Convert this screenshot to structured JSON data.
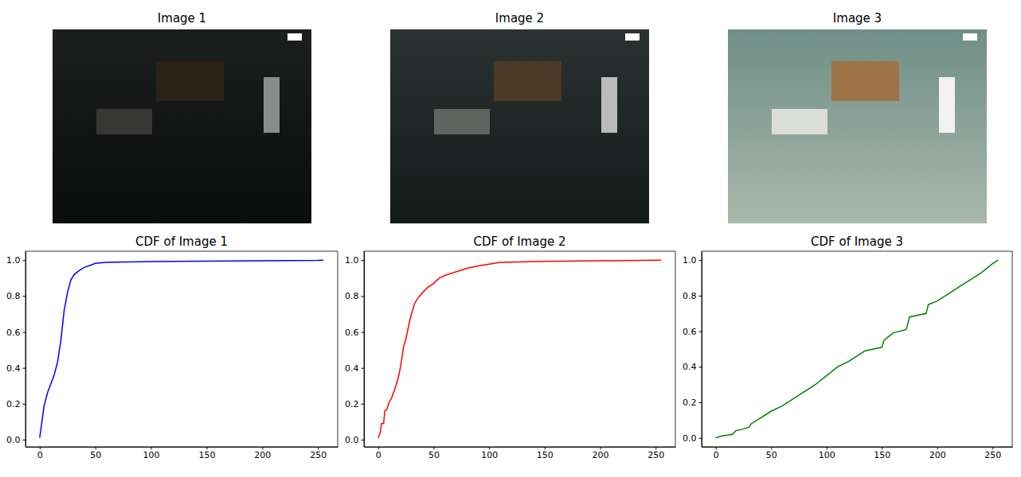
{
  "images": [
    {
      "title": "Image 1"
    },
    {
      "title": "Image 2"
    },
    {
      "title": "Image 3"
    }
  ],
  "chart_data": [
    {
      "type": "line",
      "title": "CDF of Image 1",
      "color": "#0000ff",
      "x": [
        0,
        2,
        4,
        7,
        10,
        13,
        16,
        19,
        22,
        25,
        28,
        31,
        35,
        40,
        45,
        50,
        60,
        80,
        100,
        150,
        200,
        250,
        255
      ],
      "values": [
        0.01,
        0.1,
        0.19,
        0.26,
        0.31,
        0.36,
        0.43,
        0.55,
        0.72,
        0.82,
        0.89,
        0.92,
        0.94,
        0.96,
        0.97,
        0.982,
        0.988,
        0.99,
        0.992,
        0.995,
        0.997,
        0.999,
        1.0
      ],
      "xlim": [
        -12.75,
        267.75
      ],
      "ylim": [
        -0.04,
        1.05
      ],
      "xticks": [
        0,
        50,
        100,
        150,
        200,
        250
      ],
      "yticks": [
        {
          "value": 0,
          "label": "0.0"
        },
        {
          "value": 0.2,
          "label": "0.2"
        },
        {
          "value": 0.4,
          "label": "0.4"
        },
        {
          "value": 0.6,
          "label": "0.6"
        },
        {
          "value": 0.8,
          "label": "0.8"
        },
        {
          "value": 1,
          "label": "1.0"
        }
      ]
    },
    {
      "type": "line",
      "title": "CDF of Image 2",
      "color": "#ff0000",
      "x": [
        0,
        2,
        3,
        5,
        6,
        8,
        10,
        12,
        15,
        18,
        20,
        23,
        25,
        28,
        30,
        33,
        36,
        40,
        45,
        50,
        55,
        60,
        70,
        80,
        90,
        100,
        110,
        125,
        150,
        200,
        255
      ],
      "values": [
        0.01,
        0.04,
        0.09,
        0.09,
        0.16,
        0.17,
        0.21,
        0.23,
        0.28,
        0.34,
        0.4,
        0.52,
        0.56,
        0.65,
        0.7,
        0.76,
        0.79,
        0.82,
        0.85,
        0.87,
        0.9,
        0.915,
        0.935,
        0.955,
        0.968,
        0.978,
        0.988,
        0.99,
        0.993,
        0.997,
        1.0
      ],
      "xlim": [
        -12.75,
        267.75
      ],
      "ylim": [
        -0.04,
        1.05
      ],
      "xticks": [
        0,
        50,
        100,
        150,
        200,
        250
      ],
      "yticks": [
        {
          "value": 0,
          "label": "0.0"
        },
        {
          "value": 0.2,
          "label": "0.2"
        },
        {
          "value": 0.4,
          "label": "0.4"
        },
        {
          "value": 0.6,
          "label": "0.6"
        },
        {
          "value": 0.8,
          "label": "0.8"
        },
        {
          "value": 1,
          "label": "1.0"
        }
      ]
    },
    {
      "type": "line",
      "title": "CDF of Image 3",
      "color": "#008000",
      "x": [
        0,
        5,
        10,
        15,
        18,
        25,
        30,
        32,
        40,
        45,
        50,
        60,
        70,
        80,
        90,
        100,
        110,
        120,
        130,
        135,
        150,
        152,
        160,
        172,
        175,
        190,
        192,
        200,
        210,
        220,
        230,
        240,
        250,
        255
      ],
      "values": [
        0.0,
        0.01,
        0.015,
        0.02,
        0.04,
        0.05,
        0.06,
        0.08,
        0.11,
        0.13,
        0.15,
        0.18,
        0.22,
        0.26,
        0.3,
        0.35,
        0.4,
        0.43,
        0.47,
        0.49,
        0.51,
        0.55,
        0.59,
        0.61,
        0.68,
        0.7,
        0.75,
        0.77,
        0.81,
        0.85,
        0.89,
        0.93,
        0.98,
        1.0
      ],
      "xlim": [
        -12.75,
        267.75
      ],
      "ylim": [
        -0.05,
        1.05
      ],
      "xticks": [
        0,
        50,
        100,
        150,
        200,
        250
      ],
      "yticks": [
        {
          "value": 0,
          "label": "0.0"
        },
        {
          "value": 0.2,
          "label": "0.2"
        },
        {
          "value": 0.4,
          "label": "0.4"
        },
        {
          "value": 0.6,
          "label": "0.6"
        },
        {
          "value": 0.8,
          "label": "0.8"
        },
        {
          "value": 1,
          "label": "1.0"
        }
      ]
    }
  ]
}
